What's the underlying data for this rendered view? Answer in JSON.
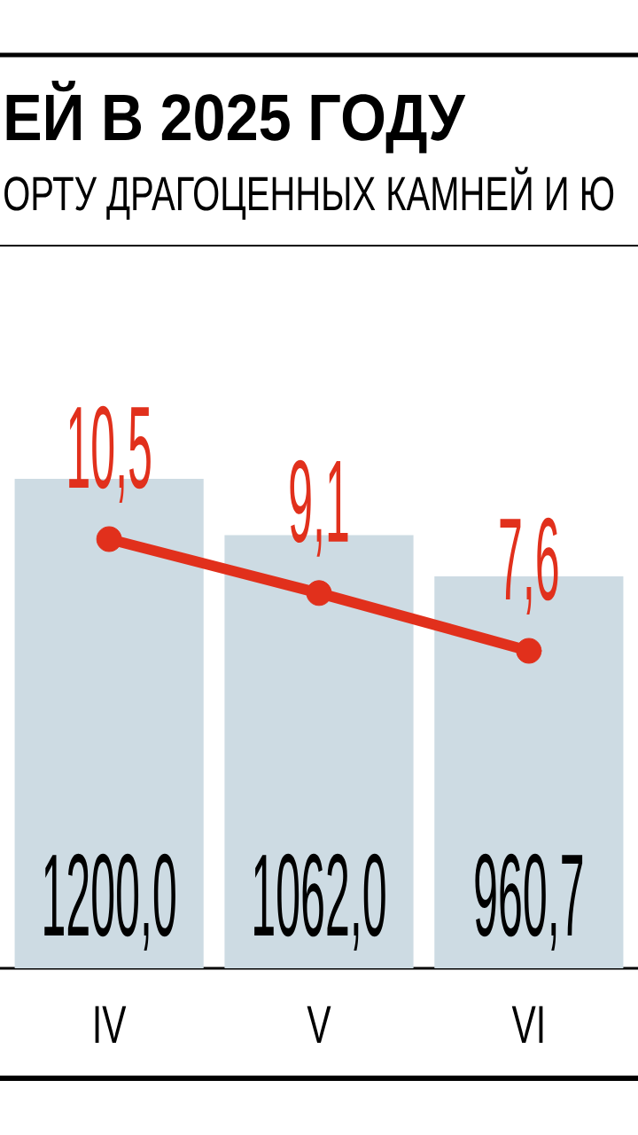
{
  "chart_data": {
    "type": "bar",
    "title": "ЕЙ В 2025 ГОДУ",
    "subtitle": "ОРТУ ДРАГОЦЕННЫХ КАМНЕЙ И Ю",
    "categories": [
      "IV",
      "V",
      "VI"
    ],
    "series": [
      {
        "color": "#cddbe3",
        "values": [
          1200.0,
          1062.0,
          960.7
        ],
        "value_labels": [
          "1200,0",
          "1062,0",
          "960,7"
        ]
      },
      {
        "type": "line",
        "axis": "y2",
        "color": "#e1301c",
        "values": [
          10.5,
          9.1,
          7.6
        ],
        "value_labels": [
          "10,5",
          "9,1",
          "7,6"
        ]
      }
    ],
    "tick_labels": "x",
    "marker": "circle",
    "line_style": "solid"
  }
}
